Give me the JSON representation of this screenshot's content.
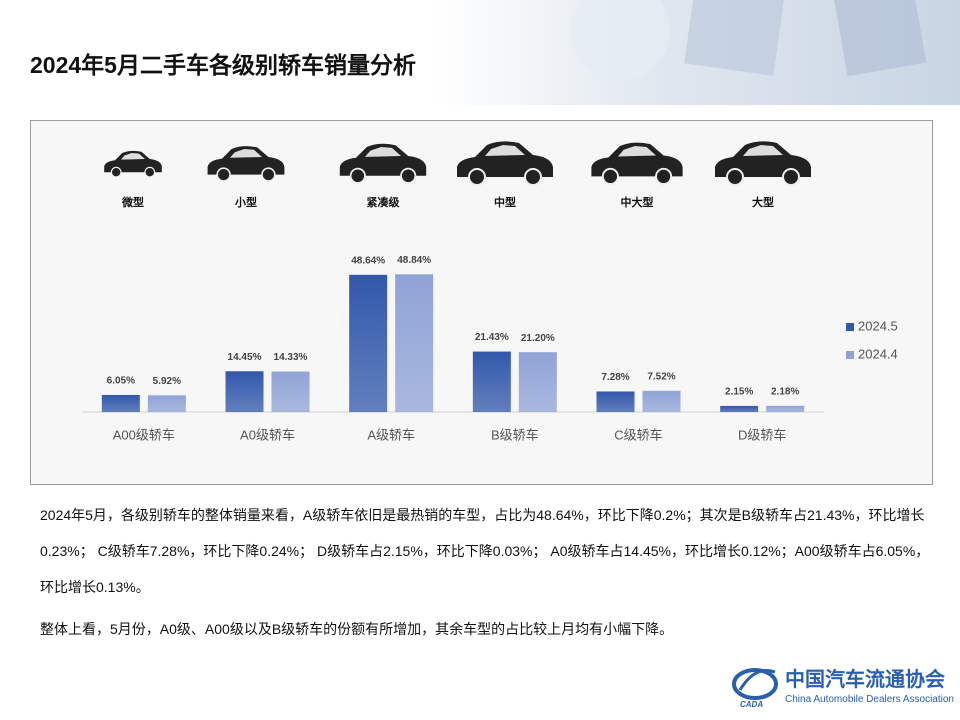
{
  "title": "2024年5月二手车各级别轿车销量分析",
  "chart_data": {
    "type": "bar",
    "car_labels": [
      "微型",
      "小型",
      "紧凑级",
      "中型",
      "中大型",
      "大型"
    ],
    "categories": [
      "A00级轿车",
      "A0级轿车",
      "A级轿车",
      "B级轿车",
      "C级轿车",
      "D级轿车"
    ],
    "series": [
      {
        "name": "2024.5",
        "color": "#3158ab",
        "values": [
          6.05,
          14.45,
          48.64,
          21.43,
          7.28,
          2.15
        ],
        "value_labels": [
          "6.05%",
          "14.45%",
          "48.64%",
          "21.43%",
          "7.28%",
          "2.15%"
        ]
      },
      {
        "name": "2024.4",
        "color": "#8fa3d6",
        "values": [
          5.92,
          14.33,
          48.84,
          21.2,
          7.52,
          2.18
        ],
        "value_labels": [
          "5.92%",
          "14.33%",
          "48.84%",
          "21.20%",
          "7.52%",
          "2.18%"
        ]
      }
    ],
    "ylim": [
      0,
      50
    ]
  },
  "body": {
    "paragraphs": [
      "2024年5月，各级别轿车的整体销量来看，A级轿车依旧是最热销的车型，占比为48.64%，环比下降0.2%；其次是B级轿车占21.43%，环比增长0.23%； C级轿车7.28%，环比下降0.24%； D级轿车占2.15%，环比下降0.03%； A0级轿车占14.45%，环比增长0.12%；A00级轿车占6.05%，环比增长0.13%。",
      "整体上看，5月份，A0级、A00级以及B级轿车的份额有所增加，其余车型的占比较上月均有小幅下降。"
    ]
  },
  "logo": {
    "name_cn": "中国汽车流通协会",
    "name_en": "China Automobile Dealers Association",
    "abbr": "CADA"
  }
}
